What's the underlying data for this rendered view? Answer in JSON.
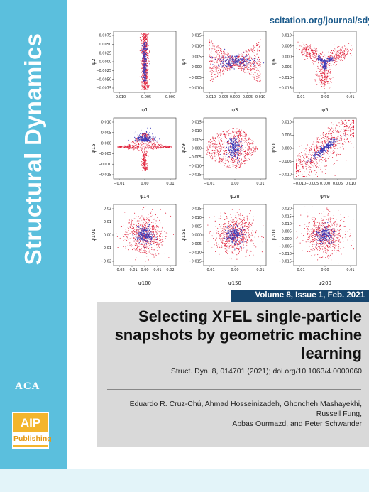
{
  "journal": {
    "name": "Structural Dynamics",
    "url": "scitation.org/journal/sdy"
  },
  "logos": {
    "aca": "ACA",
    "aip_top": "AIP",
    "aip_bottom": "Publishing"
  },
  "colors": {
    "sidebar": "#5bbfdd",
    "issue_bar": "#17456d",
    "info_box": "#d9d9d9",
    "points_red": "#e0213a",
    "points_blue": "#3a3ab8",
    "aip_yellow": "#f3b52c"
  },
  "issue": {
    "label": "Volume 8, Issue 1, Feb. 2021"
  },
  "article": {
    "title": "Selecting XFEL single-particle snapshots by geometric machine learning",
    "citation": "Struct. Dyn. 8, 014701 (2021); doi.org/10.1063/4.0000060",
    "authors_line1": "Eduardo R. Cruz-Chú, Ahmad Hosseinizadeh, Ghoncheh Mashayekhi, Russell Fung,",
    "authors_line2": "Abbas Ourmazd, and  Peter Schwander"
  },
  "chart_data": [
    {
      "type": "scatter",
      "shape": "vertical-line",
      "xlabel": "ψ1",
      "ylabel": "ψ2",
      "xticks": [
        "−0.010",
        "−0.005",
        "0.000"
      ],
      "yticks": [
        "0.0075",
        "0.0050",
        "0.0025",
        "0.0000",
        "−0.0025",
        "−0.0050",
        "−0.0075"
      ]
    },
    {
      "type": "scatter",
      "shape": "butterfly",
      "xlabel": "ψ3",
      "ylabel": "ψ4",
      "xticks": [
        "−0.010",
        "−0.005",
        "0.000",
        "0.005",
        "0.010"
      ],
      "yticks": [
        "0.015",
        "0.010",
        "0.005",
        "0.000",
        "−0.005",
        "−0.010"
      ]
    },
    {
      "type": "scatter",
      "shape": "tri-star",
      "xlabel": "ψ5",
      "ylabel": "ψ6",
      "xticks": [
        "−0.01",
        "0.00",
        "0.01"
      ],
      "yticks": [
        "0.010",
        "0.005",
        "0.000",
        "−0.005",
        "−0.010",
        "−0.015"
      ]
    },
    {
      "type": "scatter",
      "shape": "triangle",
      "xlabel": "ψ14",
      "ylabel": "ψ15",
      "xticks": [
        "−0.01",
        "0.00",
        "0.01"
      ],
      "yticks": [
        "0.010",
        "0.005",
        "0.000",
        "−0.005",
        "−0.010",
        "−0.015"
      ]
    },
    {
      "type": "scatter",
      "shape": "blob-triangle",
      "xlabel": "ψ28",
      "ylabel": "ψ29",
      "xticks": [
        "−0.01",
        "0.00",
        "0.01"
      ],
      "yticks": [
        "0.015",
        "0.010",
        "0.005",
        "0.000",
        "−0.005",
        "−0.010",
        "−0.015"
      ]
    },
    {
      "type": "scatter",
      "shape": "diagonal",
      "xlabel": "ψ49",
      "ylabel": "ψ50",
      "xticks": [
        "−0.010",
        "−0.005",
        "0.000",
        "0.005",
        "0.010"
      ],
      "yticks": [
        "0.010",
        "0.005",
        "0.000",
        "−0.005",
        "−0.010"
      ]
    },
    {
      "type": "scatter",
      "shape": "round",
      "xlabel": "ψ100",
      "ylabel": "ψ101",
      "xticks": [
        "−0.02",
        "−0.01",
        "0.00",
        "0.01",
        "0.02"
      ],
      "yticks": [
        "0.02",
        "0.01",
        "0.00",
        "−0.01",
        "−0.02"
      ]
    },
    {
      "type": "scatter",
      "shape": "round",
      "xlabel": "ψ150",
      "ylabel": "ψ151",
      "xticks": [
        "−0.01",
        "0.00",
        "0.01"
      ],
      "yticks": [
        "0.015",
        "0.010",
        "0.005",
        "0.000",
        "−0.005",
        "−0.010",
        "−0.015"
      ]
    },
    {
      "type": "scatter",
      "shape": "round",
      "xlabel": "ψ200",
      "ylabel": "ψ201",
      "xticks": [
        "−0.01",
        "0.00",
        "0.01"
      ],
      "yticks": [
        "0.020",
        "0.015",
        "0.010",
        "0.005",
        "0.000",
        "−0.005",
        "−0.010",
        "−0.015"
      ]
    }
  ]
}
